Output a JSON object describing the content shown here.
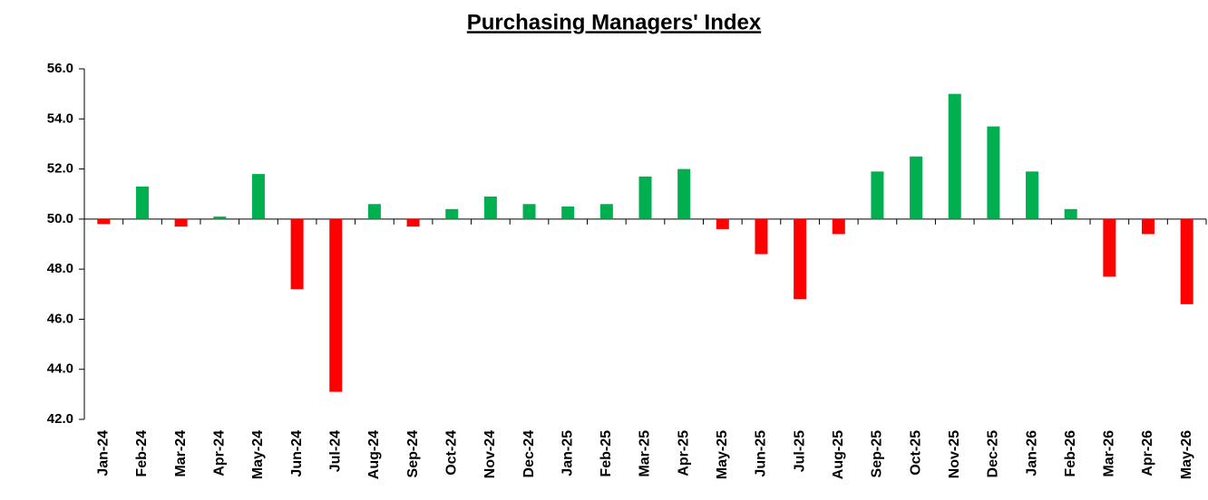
{
  "chart_data": {
    "type": "bar",
    "title": "Purchasing Managers' Index",
    "categories": [
      "Jan-24",
      "Feb-24",
      "Mar-24",
      "Apr-24",
      "May-24",
      "Jun-24",
      "Jul-24",
      "Aug-24",
      "Sep-24",
      "Oct-24",
      "Nov-24",
      "Dec-24",
      "Jan-25",
      "Feb-25",
      "Mar-25",
      "Apr-25",
      "May-25",
      "Jun-25",
      "Jul-25",
      "Aug-25",
      "Sep-25",
      "Oct-25",
      "Nov-25",
      "Dec-25",
      "Jan-26",
      "Feb-26",
      "Mar-26",
      "Apr-26",
      "May-26"
    ],
    "values": [
      49.8,
      51.3,
      49.7,
      50.1,
      51.8,
      47.2,
      43.1,
      50.6,
      49.7,
      50.4,
      50.9,
      50.6,
      50.5,
      50.6,
      51.7,
      52.0,
      49.6,
      48.6,
      46.8,
      49.4,
      51.9,
      52.5,
      55.0,
      53.7,
      51.9,
      50.4,
      47.7,
      49.4,
      46.6
    ],
    "baseline": 50,
    "color_above": "#00b050",
    "color_below": "#ff0000",
    "ylim": [
      42,
      56
    ],
    "yticks": [
      {
        "value": 42,
        "label": "42.0"
      },
      {
        "value": 44,
        "label": "44.0"
      },
      {
        "value": 46,
        "label": "46.0"
      },
      {
        "value": 48,
        "label": "48.0"
      },
      {
        "value": 50,
        "label": "50.0"
      },
      {
        "value": 52,
        "label": "52.0"
      },
      {
        "value": 54,
        "label": "54.0"
      },
      {
        "value": 56,
        "label": "56.0"
      }
    ],
    "grid": false
  }
}
